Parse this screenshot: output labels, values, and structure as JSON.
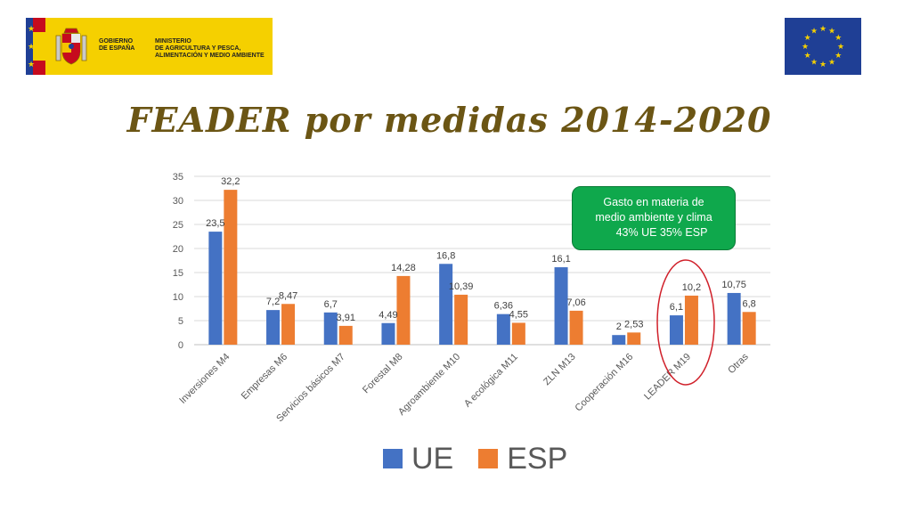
{
  "header": {
    "gov_logo_line1": "GOBIERNO\nDE ESPAÑA",
    "gov_logo_line2": "MINISTERIO\nDE AGRICULTURA Y PESCA,\nALIMENTACIÓN Y MEDIO AMBIENTE"
  },
  "colors": {
    "ue": "#4472c4",
    "esp": "#ed7d31",
    "title": "#6b5514",
    "callout": "#0fa84c",
    "highlight": "#d0202a"
  },
  "icons": [
    "spain-coat-of-arms-icon",
    "eu-flag-icon"
  ],
  "callout": {
    "line1": "Gasto en materia de",
    "line2": "medio ambiente y clima",
    "line3": "43% UE 35% ESP"
  },
  "chart_data": {
    "type": "bar",
    "title": "FEADER por medidas 2014-2020",
    "categories": [
      "Inversiones M4",
      "Empresas M6",
      "Servicios básicos M7",
      "Forestal M8",
      "Agroambiente M10",
      "A ecológica M11",
      "ZLN M13",
      "Cooperación M16",
      "LEADER M19",
      "Otras"
    ],
    "series": [
      {
        "name": "UE",
        "values": [
          23.5,
          7.2,
          6.7,
          4.49,
          16.8,
          6.36,
          16.1,
          2,
          6.1,
          10.75
        ],
        "labels": [
          "23,5",
          "7,2",
          "6,7",
          "4,49",
          "16,8",
          "6,36",
          "16,1",
          "2",
          "6,1",
          "10,75"
        ]
      },
      {
        "name": "ESP",
        "values": [
          32.2,
          8.47,
          3.91,
          14.28,
          10.39,
          4.55,
          7.06,
          2.53,
          10.2,
          6.8
        ],
        "labels": [
          "32,2",
          "8,47",
          "3,91",
          "14,28",
          "10,39",
          "4,55",
          "7,06",
          "2,53",
          "10,2",
          "6,8"
        ]
      }
    ],
    "ylim": [
      0,
      35
    ],
    "yticks": [
      0,
      5,
      10,
      15,
      20,
      25,
      30,
      35
    ],
    "grid": true,
    "legend": "bottom",
    "highlighted_category": "LEADER M19"
  }
}
